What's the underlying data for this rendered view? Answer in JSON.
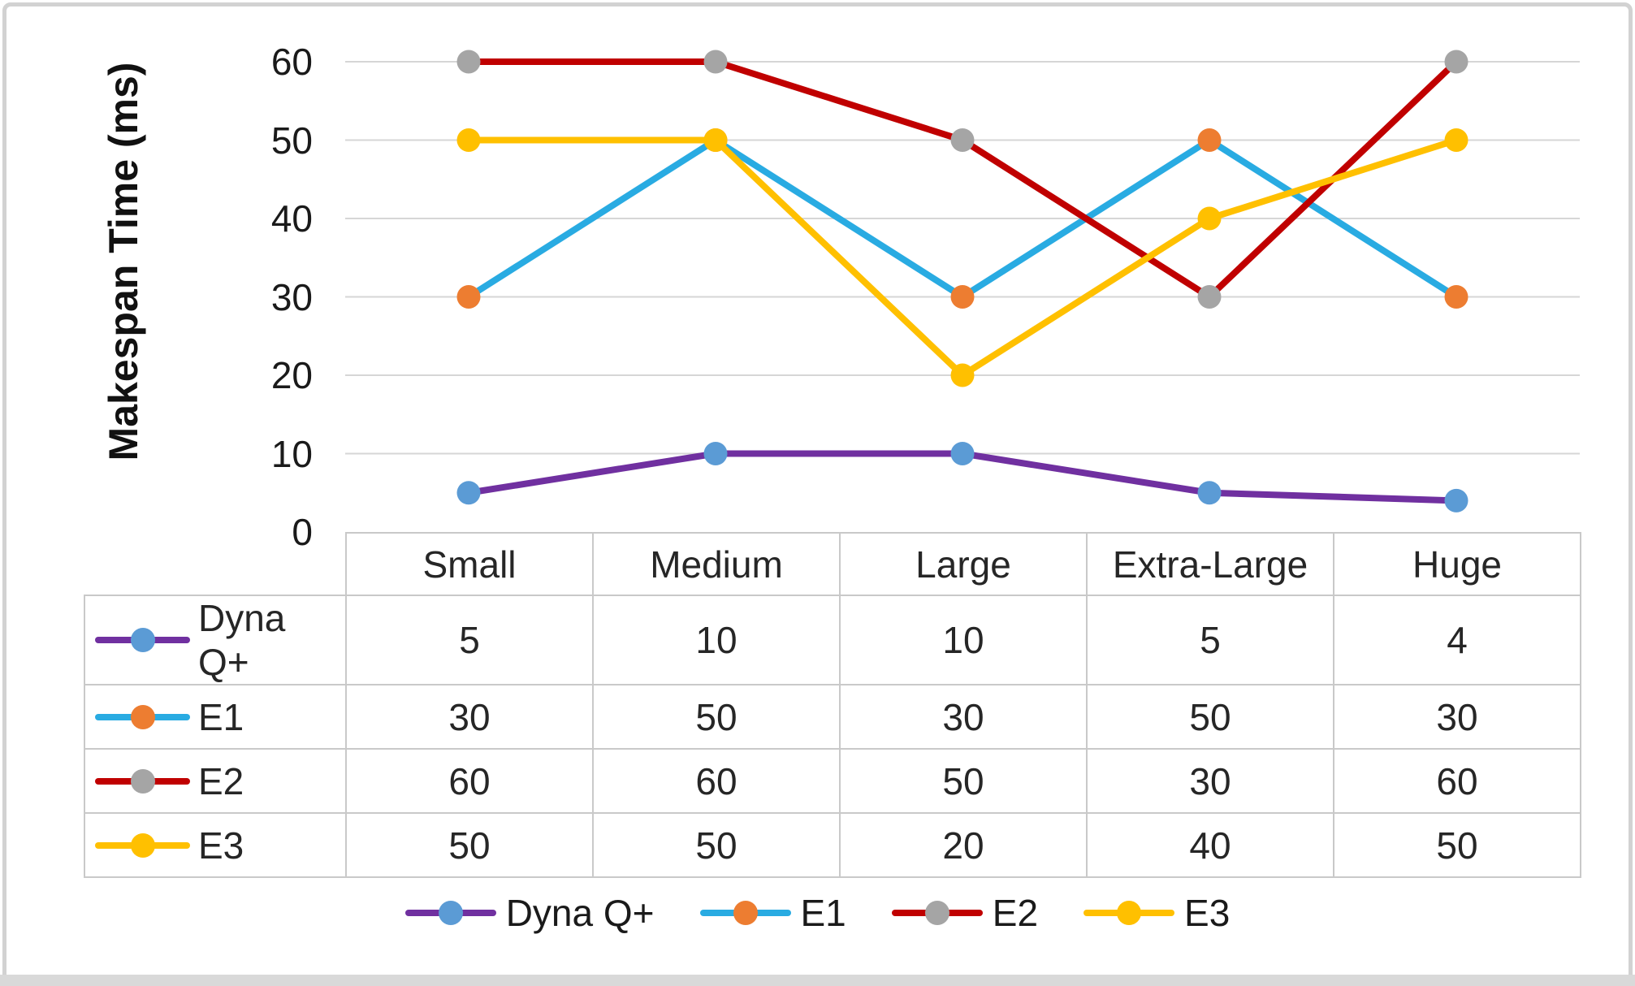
{
  "chart_data": {
    "type": "line",
    "title": "",
    "ylabel": "Makespan Time (ms)",
    "xlabel": "",
    "categories": [
      "Small",
      "Medium",
      "Large",
      "Extra-Large",
      "Huge"
    ],
    "series": [
      {
        "name": "Dyna Q+",
        "values": [
          5,
          10,
          10,
          5,
          4
        ],
        "line_color": "#7030A0",
        "marker_color": "#5B9BD5"
      },
      {
        "name": "E1",
        "values": [
          30,
          50,
          30,
          50,
          30
        ],
        "line_color": "#29ABE2",
        "marker_color": "#ED7D31"
      },
      {
        "name": "E2",
        "values": [
          60,
          60,
          50,
          30,
          60
        ],
        "line_color": "#C00000",
        "marker_color": "#A5A5A5"
      },
      {
        "name": "E3",
        "values": [
          50,
          50,
          20,
          40,
          50
        ],
        "line_color": "#FFC000",
        "marker_color": "#FFC000"
      }
    ],
    "y_ticks": [
      0,
      10,
      20,
      30,
      40,
      50,
      60
    ],
    "ylim": [
      0,
      60
    ],
    "grid": true,
    "gridline_color": "#D6D6D6",
    "legend_position": "bottom",
    "data_table_shown": true,
    "table_border_color": "#C9C9C9"
  }
}
